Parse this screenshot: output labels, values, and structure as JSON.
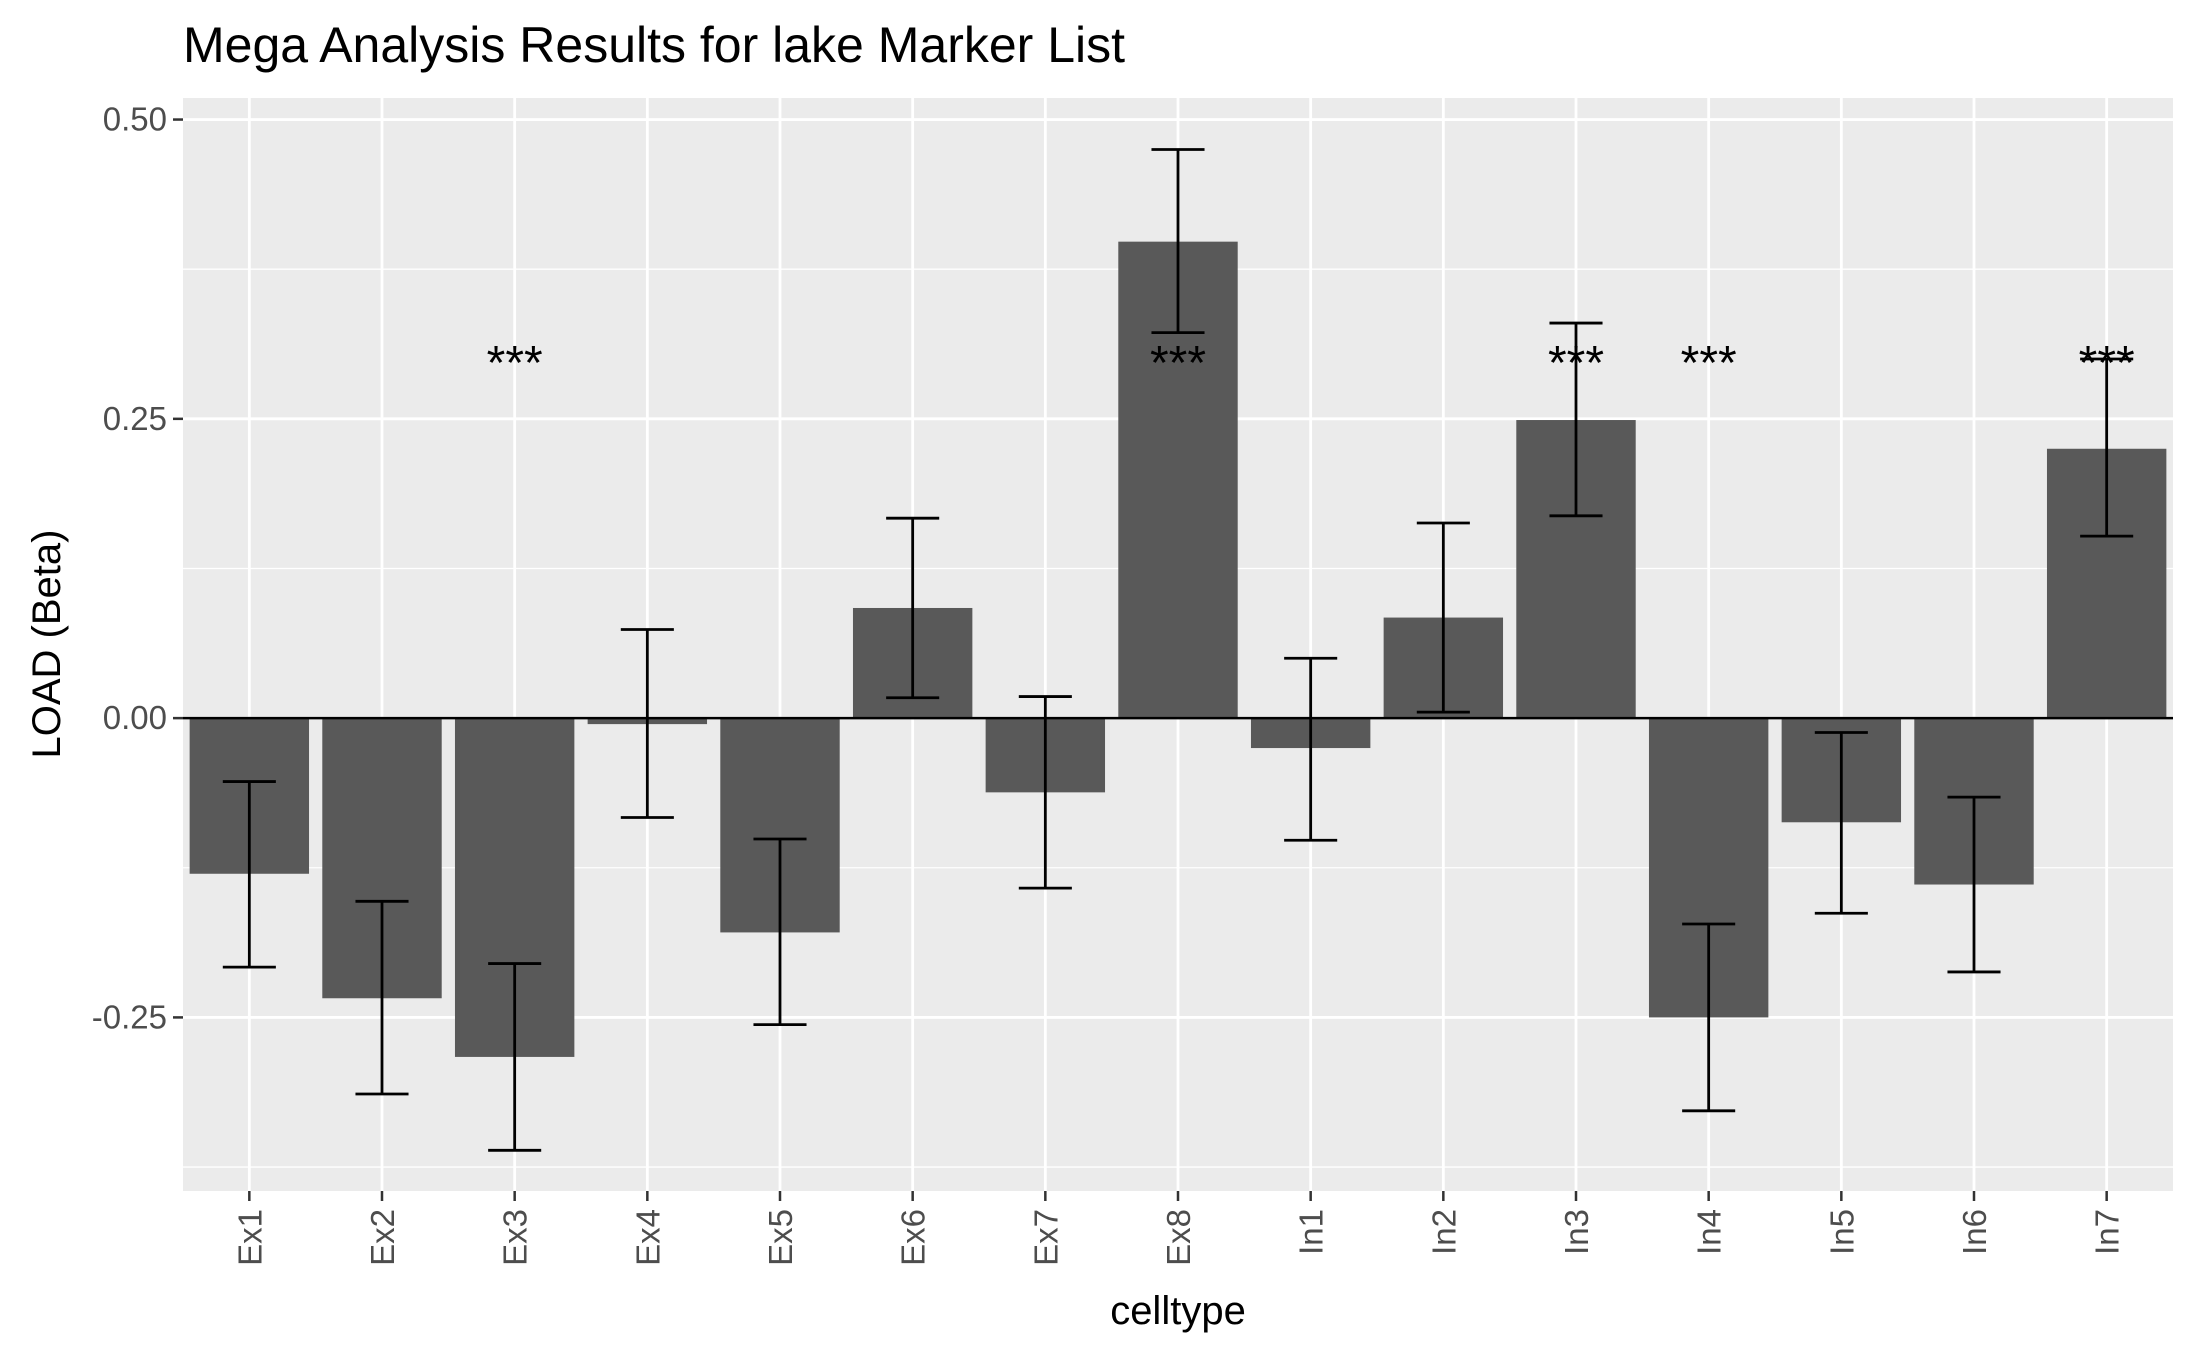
{
  "chart_data": {
    "type": "bar",
    "title": "Mega Analysis Results for lake Marker List",
    "xlabel": "celltype",
    "ylabel": "LOAD (Beta)",
    "categories": [
      "Ex1",
      "Ex2",
      "Ex3",
      "Ex4",
      "Ex5",
      "Ex6",
      "Ex7",
      "Ex8",
      "In1",
      "In2",
      "In3",
      "In4",
      "In5",
      "In6",
      "In7"
    ],
    "values": [
      -0.13,
      -0.234,
      -0.283,
      -0.005,
      -0.179,
      0.092,
      -0.062,
      0.398,
      -0.025,
      0.084,
      0.249,
      -0.25,
      -0.087,
      -0.139,
      0.225
    ],
    "error_low": [
      -0.208,
      -0.314,
      -0.361,
      -0.083,
      -0.256,
      0.017,
      -0.142,
      0.322,
      -0.102,
      0.005,
      0.169,
      -0.328,
      -0.163,
      -0.212,
      0.152
    ],
    "error_high": [
      -0.053,
      -0.153,
      -0.205,
      0.074,
      -0.101,
      0.167,
      0.018,
      0.475,
      0.05,
      0.163,
      0.33,
      -0.172,
      -0.012,
      -0.066,
      0.3
    ],
    "significance": [
      "",
      "",
      "***",
      "",
      "",
      "",
      "",
      "***",
      "",
      "",
      "***",
      "***",
      "",
      "",
      "***"
    ],
    "significance_y": 0.31,
    "ylim": [
      -0.395,
      0.518
    ],
    "yticks": [
      -0.25,
      0.0,
      0.25,
      0.5
    ],
    "ytick_labels": [
      "-0.25",
      "0.00",
      "0.25",
      "0.50"
    ],
    "grid": true,
    "colors": {
      "bar": "#595959",
      "panel": "#ebebeb",
      "grid": "#ffffff",
      "errorbar": "#000000",
      "zero_line": "#000000"
    }
  }
}
